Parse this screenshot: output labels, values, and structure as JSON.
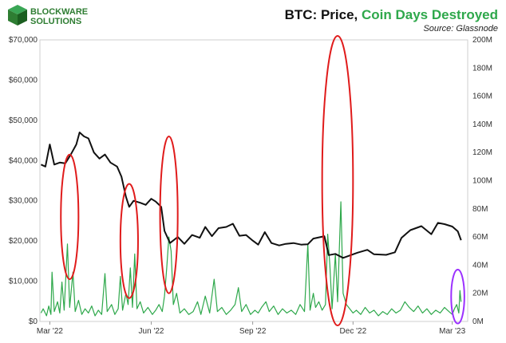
{
  "brand": {
    "name_line1": "BLOCKWARE",
    "name_line2": "SOLUTIONS",
    "logo_icon": "blockware-cube-logo-icon"
  },
  "chart_data": {
    "type": "line",
    "title_part1": "BTC: Price, ",
    "title_part2": "Coin Days Destroyed",
    "subtitle": "Source: Glassnode",
    "colors": {
      "price": "#111111",
      "cdd": "#2ea84b",
      "circle_red": "#e01b1b",
      "circle_purple": "#9b30ff",
      "title_green": "#2ea84b"
    },
    "grid": false,
    "left_axis": {
      "min": 0,
      "max": 70000,
      "ticks": [
        0,
        10000,
        20000,
        30000,
        40000,
        50000,
        60000,
        70000
      ],
      "tick_labels": [
        "$0",
        "$10,000",
        "$20,000",
        "$30,000",
        "$40,000",
        "$50,000",
        "$60,000",
        "$70,000"
      ]
    },
    "right_axis": {
      "min": 0,
      "max": 200,
      "ticks": [
        0,
        20,
        40,
        60,
        80,
        100,
        120,
        140,
        160,
        180,
        200
      ],
      "tick_labels": [
        "0M",
        "20M",
        "40M",
        "60M",
        "80M",
        "100M",
        "120M",
        "140M",
        "160M",
        "180M",
        "200M"
      ]
    },
    "x_axis": {
      "start": "2022-02-20",
      "end": "2023-03-15",
      "ticks": [
        {
          "date": "2022-03-01",
          "label": "Mar '22"
        },
        {
          "date": "2022-06-01",
          "label": "Jun '22"
        },
        {
          "date": "2022-09-01",
          "label": "Sep '22"
        },
        {
          "date": "2022-12-01",
          "label": "Dec '22"
        },
        {
          "date": "2023-03-01",
          "label": "Mar '23"
        }
      ]
    },
    "series": [
      {
        "axis": "left",
        "points": [
          [
            "2022-02-21",
            39000
          ],
          [
            "2022-02-25",
            38500
          ],
          [
            "2022-03-01",
            44000
          ],
          [
            "2022-03-05",
            39000
          ],
          [
            "2022-03-10",
            39500
          ],
          [
            "2022-03-15",
            39300
          ],
          [
            "2022-03-20",
            41500
          ],
          [
            "2022-03-25",
            44000
          ],
          [
            "2022-03-28",
            47000
          ],
          [
            "2022-04-01",
            46000
          ],
          [
            "2022-04-05",
            45500
          ],
          [
            "2022-04-10",
            42000
          ],
          [
            "2022-04-15",
            40500
          ],
          [
            "2022-04-20",
            41500
          ],
          [
            "2022-04-25",
            39500
          ],
          [
            "2022-05-01",
            38500
          ],
          [
            "2022-05-05",
            36000
          ],
          [
            "2022-05-09",
            31000
          ],
          [
            "2022-05-12",
            28500
          ],
          [
            "2022-05-16",
            30000
          ],
          [
            "2022-05-22",
            29500
          ],
          [
            "2022-05-27",
            29000
          ],
          [
            "2022-06-01",
            30500
          ],
          [
            "2022-06-05",
            29800
          ],
          [
            "2022-06-10",
            28500
          ],
          [
            "2022-06-13",
            22500
          ],
          [
            "2022-06-18",
            19500
          ],
          [
            "2022-06-25",
            21000
          ],
          [
            "2022-07-01",
            19300
          ],
          [
            "2022-07-08",
            21500
          ],
          [
            "2022-07-15",
            20800
          ],
          [
            "2022-07-20",
            23500
          ],
          [
            "2022-07-26",
            21200
          ],
          [
            "2022-08-01",
            23200
          ],
          [
            "2022-08-08",
            23500
          ],
          [
            "2022-08-14",
            24300
          ],
          [
            "2022-08-20",
            21300
          ],
          [
            "2022-08-26",
            21500
          ],
          [
            "2022-09-01",
            20100
          ],
          [
            "2022-09-06",
            19100
          ],
          [
            "2022-09-12",
            22200
          ],
          [
            "2022-09-18",
            19500
          ],
          [
            "2022-09-25",
            18900
          ],
          [
            "2022-10-01",
            19300
          ],
          [
            "2022-10-08",
            19500
          ],
          [
            "2022-10-15",
            19100
          ],
          [
            "2022-10-21",
            19200
          ],
          [
            "2022-10-26",
            20600
          ],
          [
            "2022-11-05",
            21200
          ],
          [
            "2022-11-09",
            16500
          ],
          [
            "2022-11-15",
            16800
          ],
          [
            "2022-11-22",
            15800
          ],
          [
            "2022-11-28",
            16400
          ],
          [
            "2022-12-05",
            17100
          ],
          [
            "2022-12-14",
            17800
          ],
          [
            "2022-12-20",
            16700
          ],
          [
            "2022-12-31",
            16550
          ],
          [
            "2023-01-08",
            17200
          ],
          [
            "2023-01-14",
            20800
          ],
          [
            "2023-01-22",
            22700
          ],
          [
            "2023-02-01",
            23700
          ],
          [
            "2023-02-10",
            21700
          ],
          [
            "2023-02-16",
            24500
          ],
          [
            "2023-02-22",
            24200
          ],
          [
            "2023-03-01",
            23600
          ],
          [
            "2023-03-06",
            22400
          ],
          [
            "2023-03-09",
            20200
          ]
        ]
      },
      {
        "axis": "right",
        "points": [
          [
            "2022-02-21",
            6
          ],
          [
            "2022-02-23",
            9
          ],
          [
            "2022-02-26",
            4
          ],
          [
            "2022-02-28",
            11
          ],
          [
            "2022-03-02",
            5
          ],
          [
            "2022-03-03",
            35
          ],
          [
            "2022-03-05",
            7
          ],
          [
            "2022-03-08",
            14
          ],
          [
            "2022-03-10",
            6
          ],
          [
            "2022-03-12",
            28
          ],
          [
            "2022-03-14",
            8
          ],
          [
            "2022-03-17",
            55
          ],
          [
            "2022-03-19",
            10
          ],
          [
            "2022-03-22",
            35
          ],
          [
            "2022-03-24",
            7
          ],
          [
            "2022-03-27",
            15
          ],
          [
            "2022-03-30",
            5
          ],
          [
            "2022-04-02",
            9
          ],
          [
            "2022-04-05",
            6
          ],
          [
            "2022-04-08",
            11
          ],
          [
            "2022-04-11",
            4
          ],
          [
            "2022-04-14",
            8
          ],
          [
            "2022-04-17",
            5
          ],
          [
            "2022-04-20",
            34
          ],
          [
            "2022-04-22",
            7
          ],
          [
            "2022-04-26",
            12
          ],
          [
            "2022-04-29",
            5
          ],
          [
            "2022-05-02",
            9
          ],
          [
            "2022-05-04",
            32
          ],
          [
            "2022-05-06",
            8
          ],
          [
            "2022-05-09",
            20
          ],
          [
            "2022-05-11",
            12
          ],
          [
            "2022-05-13",
            38
          ],
          [
            "2022-05-15",
            10
          ],
          [
            "2022-05-17",
            48
          ],
          [
            "2022-05-19",
            9
          ],
          [
            "2022-05-22",
            14
          ],
          [
            "2022-05-25",
            6
          ],
          [
            "2022-05-29",
            10
          ],
          [
            "2022-06-02",
            5
          ],
          [
            "2022-06-05",
            8
          ],
          [
            "2022-06-08",
            12
          ],
          [
            "2022-06-11",
            7
          ],
          [
            "2022-06-13",
            18
          ],
          [
            "2022-06-15",
            38
          ],
          [
            "2022-06-17",
            60
          ],
          [
            "2022-06-19",
            50
          ],
          [
            "2022-06-21",
            12
          ],
          [
            "2022-06-24",
            20
          ],
          [
            "2022-06-27",
            6
          ],
          [
            "2022-07-01",
            9
          ],
          [
            "2022-07-05",
            5
          ],
          [
            "2022-07-09",
            7
          ],
          [
            "2022-07-13",
            14
          ],
          [
            "2022-07-16",
            5
          ],
          [
            "2022-07-20",
            18
          ],
          [
            "2022-07-24",
            6
          ],
          [
            "2022-07-28",
            30
          ],
          [
            "2022-07-31",
            7
          ],
          [
            "2022-08-04",
            10
          ],
          [
            "2022-08-08",
            5
          ],
          [
            "2022-08-12",
            8
          ],
          [
            "2022-08-16",
            12
          ],
          [
            "2022-08-19",
            24
          ],
          [
            "2022-08-22",
            7
          ],
          [
            "2022-08-26",
            12
          ],
          [
            "2022-08-30",
            5
          ],
          [
            "2022-09-03",
            8
          ],
          [
            "2022-09-06",
            6
          ],
          [
            "2022-09-09",
            10
          ],
          [
            "2022-09-13",
            14
          ],
          [
            "2022-09-16",
            7
          ],
          [
            "2022-09-20",
            11
          ],
          [
            "2022-09-24",
            5
          ],
          [
            "2022-09-28",
            9
          ],
          [
            "2022-10-02",
            6
          ],
          [
            "2022-10-06",
            8
          ],
          [
            "2022-10-10",
            5
          ],
          [
            "2022-10-14",
            12
          ],
          [
            "2022-10-18",
            7
          ],
          [
            "2022-10-21",
            55
          ],
          [
            "2022-10-23",
            8
          ],
          [
            "2022-10-26",
            20
          ],
          [
            "2022-10-28",
            10
          ],
          [
            "2022-10-31",
            14
          ],
          [
            "2022-11-03",
            8
          ],
          [
            "2022-11-06",
            12
          ],
          [
            "2022-11-08",
            62
          ],
          [
            "2022-11-10",
            40
          ],
          [
            "2022-11-12",
            9
          ],
          [
            "2022-11-15",
            48
          ],
          [
            "2022-11-17",
            14
          ],
          [
            "2022-11-20",
            85
          ],
          [
            "2022-11-22",
            20
          ],
          [
            "2022-11-25",
            12
          ],
          [
            "2022-11-28",
            9
          ],
          [
            "2022-12-01",
            6
          ],
          [
            "2022-12-04",
            8
          ],
          [
            "2022-12-08",
            5
          ],
          [
            "2022-12-12",
            10
          ],
          [
            "2022-12-16",
            6
          ],
          [
            "2022-12-20",
            8
          ],
          [
            "2022-12-24",
            4
          ],
          [
            "2022-12-28",
            7
          ],
          [
            "2023-01-01",
            5
          ],
          [
            "2023-01-05",
            9
          ],
          [
            "2023-01-09",
            6
          ],
          [
            "2023-01-13",
            8
          ],
          [
            "2023-01-17",
            14
          ],
          [
            "2023-01-21",
            10
          ],
          [
            "2023-01-25",
            7
          ],
          [
            "2023-01-29",
            11
          ],
          [
            "2023-02-02",
            6
          ],
          [
            "2023-02-06",
            9
          ],
          [
            "2023-02-10",
            5
          ],
          [
            "2023-02-14",
            8
          ],
          [
            "2023-02-18",
            6
          ],
          [
            "2023-02-22",
            10
          ],
          [
            "2023-02-26",
            7
          ],
          [
            "2023-03-01",
            5
          ],
          [
            "2023-03-03",
            9
          ],
          [
            "2023-03-05",
            12
          ],
          [
            "2023-03-07",
            6
          ],
          [
            "2023-03-08",
            22
          ],
          [
            "2023-03-09",
            14
          ]
        ]
      }
    ],
    "annotations": [
      {
        "shape": "ellipse",
        "color": "circle_red",
        "center": [
          "2022-03-19",
          26000
        ],
        "radius_days": 8,
        "radius_value": 15500
      },
      {
        "shape": "ellipse",
        "color": "circle_red",
        "center": [
          "2022-05-12",
          20000
        ],
        "radius_days": 8,
        "radius_value": 14200
      },
      {
        "shape": "ellipse",
        "color": "circle_red",
        "center": [
          "2022-06-17",
          26500
        ],
        "radius_days": 8,
        "radius_value": 19500
      },
      {
        "shape": "ellipse",
        "color": "circle_red",
        "center": [
          "2022-11-17",
          35000
        ],
        "radius_days": 14,
        "radius_value": 36000
      },
      {
        "shape": "ellipse",
        "color": "circle_purple",
        "center": [
          "2023-03-06",
          6200
        ],
        "radius_days": 6,
        "radius_value": 6700
      }
    ]
  }
}
